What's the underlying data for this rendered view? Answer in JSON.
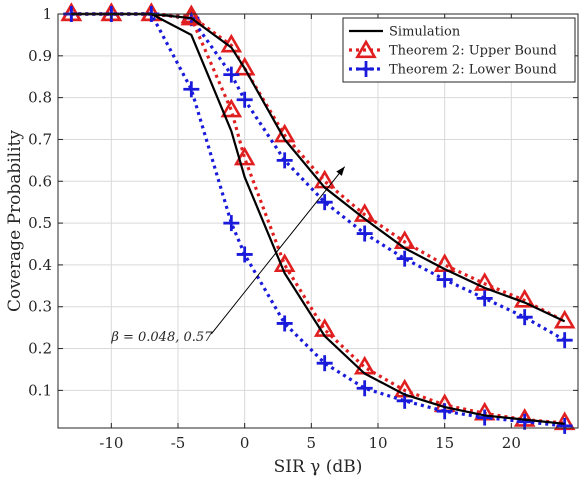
{
  "chart_data": {
    "type": "line",
    "title": "",
    "xlabel": "SIR γ (dB)",
    "ylabel": "Coverage Probability",
    "xlim": [
      -14,
      25
    ],
    "ylim": [
      0.01,
      1.0
    ],
    "xticks": [
      -10,
      -5,
      0,
      5,
      10,
      15,
      20
    ],
    "xtick_labels": [
      "-10",
      "-5",
      "0",
      "5",
      "10",
      "15",
      "20"
    ],
    "yticks": [
      0.1,
      0.2,
      0.3,
      0.4,
      0.5,
      0.6,
      0.7,
      0.8,
      0.9,
      1
    ],
    "ytick_labels": [
      "0.1",
      "0.2",
      "0.3",
      "0.4",
      "0.5",
      "0.6",
      "0.7",
      "0.8",
      "0.9",
      "1"
    ],
    "grid": true,
    "legend_position": "top-right",
    "annotation": {
      "text": "β = 0.048, 0.57",
      "arrow_from": [
        -2.5,
        0.235
      ],
      "arrow_to": [
        7.5,
        0.635
      ]
    },
    "series": [
      {
        "name": "Simulation",
        "group": "beta-0.048",
        "style": "solid",
        "color": "#000000",
        "marker": "none",
        "x": [
          -13,
          -10,
          -7,
          -4,
          -1,
          0,
          3,
          6,
          9,
          12,
          15,
          18,
          21,
          24
        ],
        "y": [
          1,
          1,
          1,
          0.99,
          0.92,
          0.87,
          0.7,
          0.585,
          0.51,
          0.44,
          0.39,
          0.345,
          0.31,
          0.265
        ]
      },
      {
        "name": "Theorem 2: Upper Bound",
        "group": "beta-0.048",
        "style": "dotted",
        "color": "#e02020",
        "marker": "triangle",
        "x": [
          -13,
          -10,
          -7,
          -4,
          -1,
          0,
          3,
          6,
          9,
          12,
          15,
          18,
          21,
          24
        ],
        "y": [
          1,
          1,
          1,
          0.995,
          0.925,
          0.87,
          0.71,
          0.6,
          0.52,
          0.455,
          0.4,
          0.355,
          0.315,
          0.265
        ]
      },
      {
        "name": "Theorem 2: Lower Bound",
        "group": "beta-0.048",
        "style": "dotted",
        "color": "#1a1adb",
        "marker": "plus",
        "x": [
          -13,
          -10,
          -7,
          -4,
          -1,
          0,
          3,
          6,
          9,
          12,
          15,
          18,
          21,
          24
        ],
        "y": [
          1,
          1,
          1,
          0.99,
          0.855,
          0.795,
          0.65,
          0.55,
          0.475,
          0.415,
          0.365,
          0.32,
          0.275,
          0.22
        ]
      },
      {
        "name": "Simulation",
        "group": "beta-0.57",
        "style": "solid",
        "color": "#000000",
        "marker": "none",
        "x": [
          -13,
          -10,
          -7,
          -4,
          -1,
          0,
          3,
          6,
          9,
          12,
          15,
          18,
          21,
          24
        ],
        "y": [
          1,
          1,
          1,
          0.95,
          0.72,
          0.61,
          0.38,
          0.23,
          0.14,
          0.09,
          0.06,
          0.04,
          0.03,
          0.02
        ]
      },
      {
        "name": "Theorem 2: Upper Bound",
        "group": "beta-0.57",
        "style": "dotted",
        "color": "#e02020",
        "marker": "triangle",
        "x": [
          -13,
          -10,
          -7,
          -4,
          -1,
          0,
          3,
          6,
          9,
          12,
          15,
          18,
          21,
          24
        ],
        "y": [
          1,
          1,
          1,
          0.99,
          0.77,
          0.655,
          0.4,
          0.245,
          0.155,
          0.1,
          0.065,
          0.045,
          0.03,
          0.022
        ]
      },
      {
        "name": "Theorem 2: Lower Bound",
        "group": "beta-0.57",
        "style": "dotted",
        "color": "#1a1adb",
        "marker": "plus",
        "x": [
          -13,
          -10,
          -7,
          -4,
          -1,
          0,
          3,
          6,
          9,
          12,
          15,
          18,
          21,
          24
        ],
        "y": [
          1,
          1,
          1,
          0.82,
          0.5,
          0.425,
          0.26,
          0.165,
          0.105,
          0.075,
          0.05,
          0.035,
          0.025,
          0.015
        ]
      }
    ],
    "legend": [
      {
        "label": "Simulation",
        "color": "#000000",
        "style": "solid",
        "marker": "none"
      },
      {
        "label": "Theorem 2: Upper Bound",
        "color": "#e02020",
        "style": "dotted",
        "marker": "triangle"
      },
      {
        "label": "Theorem 2: Lower Bound",
        "color": "#1a1adb",
        "style": "dotted",
        "marker": "plus"
      }
    ]
  }
}
